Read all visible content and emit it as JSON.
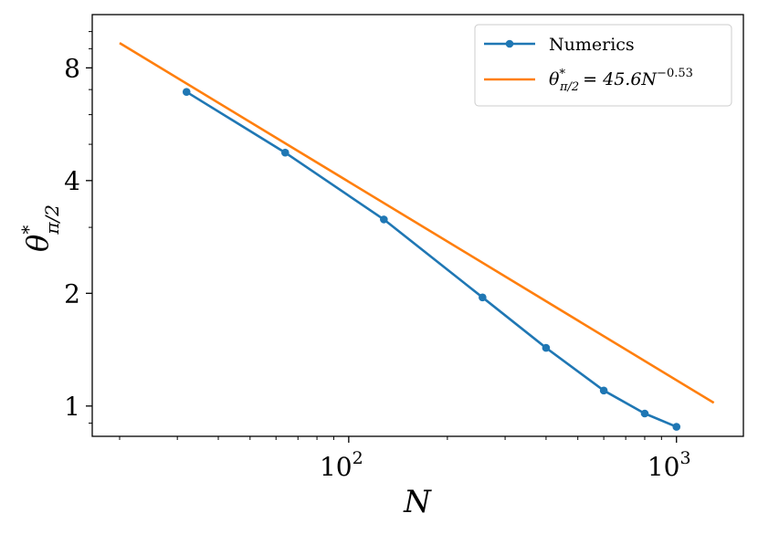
{
  "chart_data": {
    "type": "line",
    "x_scale": "log",
    "y_scale": "log",
    "xlim": [
      16.5,
      1600
    ],
    "ylim": [
      0.83,
      11.1
    ],
    "xlabel": "N",
    "ylabel": "θ*π/2",
    "ylabel_parts": {
      "base": "θ",
      "sup": "*",
      "sub": "π/2"
    },
    "x_ticks": [
      {
        "value": 100,
        "base": "10",
        "exp": "2"
      },
      {
        "value": 1000,
        "base": "10",
        "exp": "3"
      }
    ],
    "y_ticks": [
      {
        "value": 1,
        "label": "1"
      },
      {
        "value": 2,
        "label": "2"
      },
      {
        "value": 4,
        "label": "4"
      },
      {
        "value": 8,
        "label": "8"
      }
    ],
    "grid": false,
    "legend_position": "top-right",
    "series": [
      {
        "name": "Numerics",
        "color": "#1f77b4",
        "marker": "circle",
        "x": [
          32,
          64,
          128,
          256,
          400,
          600,
          800,
          1000
        ],
        "y": [
          6.9,
          4.75,
          3.15,
          1.95,
          1.43,
          1.1,
          0.955,
          0.88
        ]
      },
      {
        "name": "θ*π/2 = 45.6N−0.53",
        "legend_parts": {
          "lhs_base": "θ",
          "lhs_sup": "*",
          "lhs_sub": "π/2",
          "rhs": "= 45.6N",
          "rhs_sup": "−0.53"
        },
        "color": "#ff7f0e",
        "marker": "none",
        "fit": {
          "coef": 45.6,
          "exponent": -0.53
        },
        "x": [
          20,
          1300
        ]
      }
    ]
  }
}
